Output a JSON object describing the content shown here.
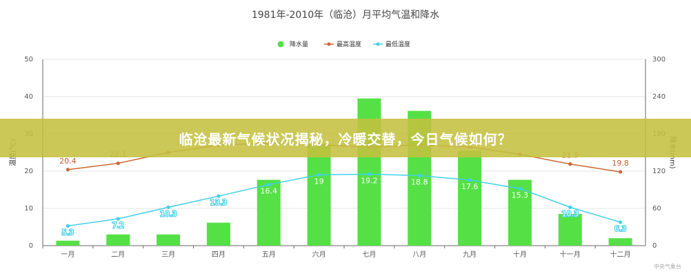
{
  "chart_data": {
    "type": "bar",
    "title": "1981年-2010年（临沧）月平均气温和降水",
    "categories": [
      "一月",
      "二月",
      "三月",
      "四月",
      "五月",
      "六月",
      "七月",
      "八月",
      "九月",
      "十月",
      "十一月",
      "十二月"
    ],
    "left_axis": {
      "label": "温度(°C)",
      "ylim": [
        0,
        50
      ],
      "ticks": [
        0,
        10,
        20,
        30,
        40,
        50
      ]
    },
    "right_axis": {
      "label": "降水(mm)",
      "ylim": [
        0,
        300
      ],
      "ticks": [
        0,
        60,
        120,
        180,
        240,
        300
      ]
    },
    "grid": true,
    "legend_position": "top-center",
    "series": [
      {
        "name": "降水量",
        "kind": "bar",
        "axis": "right",
        "color": "#55e046",
        "values": [
          8,
          18,
          18,
          37,
          106,
          164,
          237,
          217,
          153,
          106,
          51,
          12
        ],
        "data_labels": [
          "",
          "",
          "",
          "",
          "16.4",
          "19",
          "19.2",
          "18.8",
          "17.6",
          "15.3",
          "",
          ""
        ]
      },
      {
        "name": "最高温度",
        "kind": "line",
        "axis": "left",
        "color": "#cc6633",
        "values": [
          20.4,
          22.1,
          25.0,
          27.0,
          27.5,
          27.0,
          26.5,
          27.0,
          26.5,
          24.5,
          21.9,
          19.8
        ],
        "data_labels": [
          "20.4",
          "22.1",
          "",
          "",
          "",
          "",
          "",
          "",
          "",
          "",
          "21.9",
          "19.8"
        ]
      },
      {
        "name": "最低温度",
        "kind": "line",
        "axis": "left",
        "color": "#40d0e8",
        "values": [
          5.3,
          7.2,
          10.3,
          13.3,
          16.4,
          19,
          19.2,
          18.8,
          17.6,
          15.3,
          10.3,
          6.3
        ],
        "data_labels": [
          "5.3",
          "7.2",
          "10.3",
          "13.3",
          "",
          "",
          "",
          "",
          "",
          "",
          "10.3",
          "6.3"
        ]
      }
    ]
  },
  "overlay": {
    "headline": "临沧最新气候状况揭秘，冷暖交替，今日气候如何？",
    "watermark": "中央气象台"
  }
}
